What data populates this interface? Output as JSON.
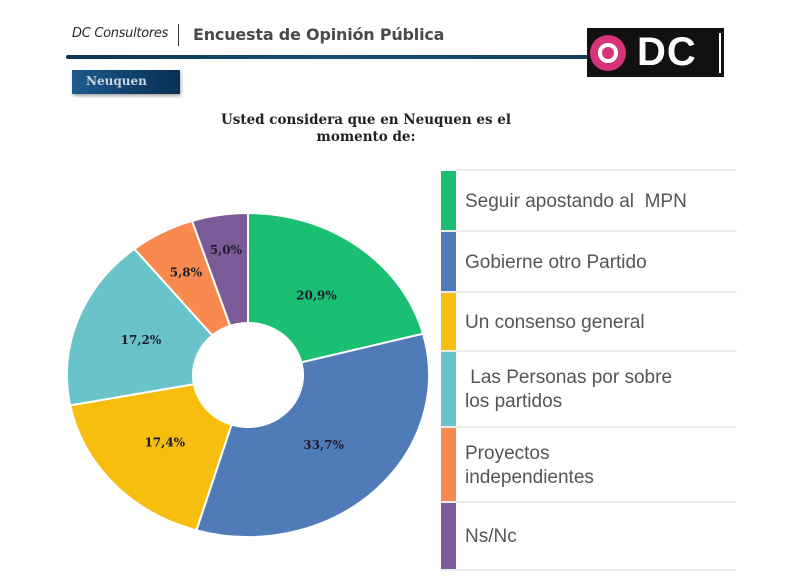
{
  "header": {
    "brand": "DC Consultores",
    "survey_title": "Encuesta de Opinión Pública",
    "logo_text": "DC",
    "region_badge": "Neuquen"
  },
  "chart_data": {
    "type": "pie",
    "variant": "donut",
    "title": "Usted considera que en Neuquen es el momento de:",
    "start": "top",
    "direction": "clockwise",
    "legend_position": "right",
    "categories": [
      "Seguir apostando al  MPN",
      "Gobierne otro Partido",
      "Un consenso general",
      " Las Personas por sobre los partidos",
      "Proyectos independientes",
      "Ns/Nc"
    ],
    "values": [
      20.9,
      33.7,
      17.4,
      17.2,
      5.8,
      5.0
    ],
    "labels": [
      "20,9%",
      "33,7%",
      "17,4%",
      "17,2%",
      "5,8%",
      "5,0%"
    ],
    "colors": [
      "#1bbf72",
      "#4f7cb8",
      "#f7be0f",
      "#69c3c8",
      "#f88a4f",
      "#7a5a97"
    ]
  },
  "legend": {
    "items": [
      {
        "line1": "Seguir apostando al  MPN",
        "line2": ""
      },
      {
        "line1": "Gobierne otro Partido",
        "line2": ""
      },
      {
        "line1": "Un consenso general",
        "line2": ""
      },
      {
        "line1": " Las Personas por sobre",
        "line2": "los partidos"
      },
      {
        "line1": "Proyectos",
        "line2": "independientes"
      },
      {
        "line1": "Ns/Nc",
        "line2": ""
      }
    ]
  }
}
